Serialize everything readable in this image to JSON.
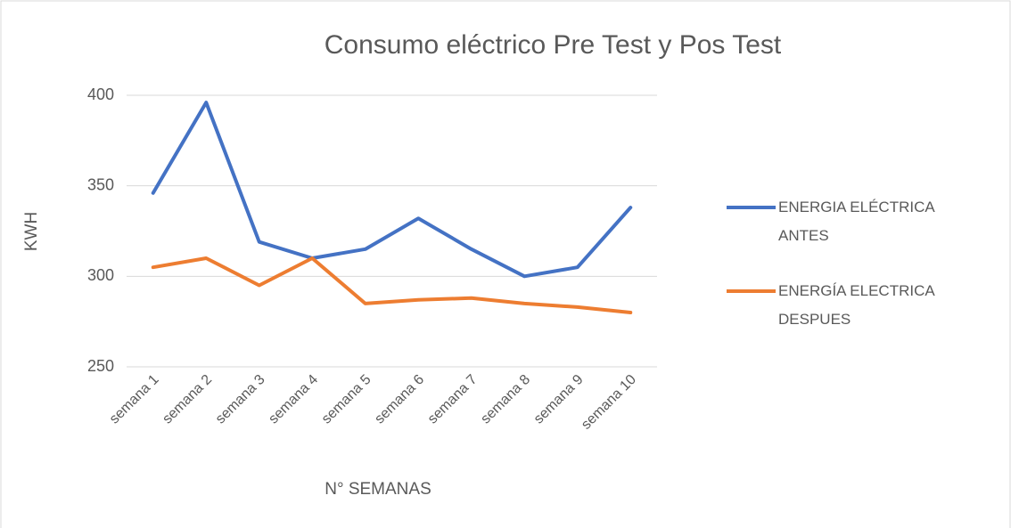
{
  "chart_data": {
    "type": "line",
    "title": "Consumo eléctrico Pre Test y Pos Test",
    "x_label": "N° SEMANAS",
    "y_label": "KWH",
    "categories": [
      "semana 1",
      "semana 2",
      "semana 3",
      "semana 4",
      "semana 5",
      "semana 6",
      "semana 7",
      "semana 8",
      "semana 9",
      "semana 10"
    ],
    "series": [
      {
        "name": "ENERGIA ELÉCTRICA ANTES",
        "color": "#4472c4",
        "values": [
          346,
          396,
          319,
          310,
          315,
          332,
          315,
          300,
          305,
          338
        ]
      },
      {
        "name": "ENERGÍA ELECTRICA DESPUES",
        "color": "#ed7d31",
        "values": [
          305,
          310,
          295,
          310,
          285,
          287,
          288,
          285,
          283,
          280
        ]
      }
    ],
    "ylim": [
      250,
      400
    ],
    "yticks": [
      250,
      300,
      350,
      400
    ],
    "grid": true,
    "legend": "right"
  }
}
